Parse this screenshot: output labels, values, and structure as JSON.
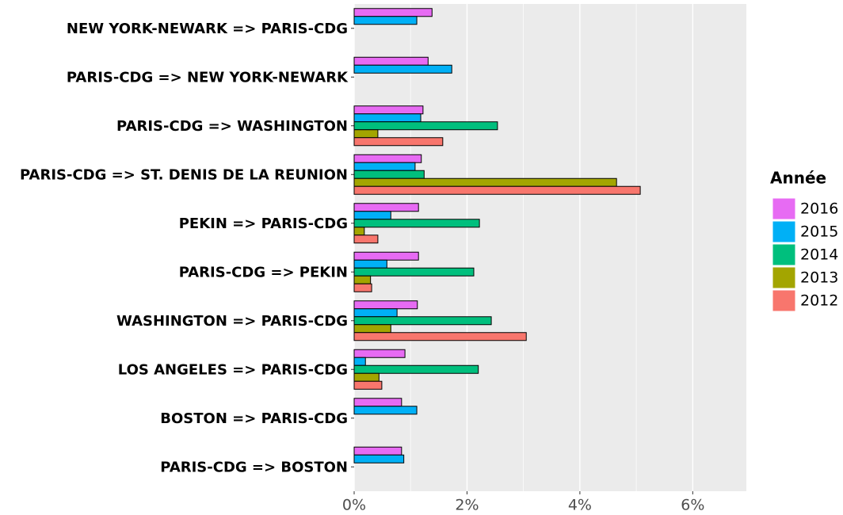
{
  "chart_data": {
    "type": "hbar",
    "categories": [
      "NEW YORK-NEWARK => PARIS-CDG",
      "PARIS-CDG => NEW YORK-NEWARK",
      "PARIS-CDG => WASHINGTON",
      "PARIS-CDG => ST. DENIS DE LA REUNION",
      "PEKIN => PARIS-CDG",
      "PARIS-CDG => PEKIN",
      "WASHINGTON => PARIS-CDG",
      "LOS ANGELES => PARIS-CDG",
      "BOSTON => PARIS-CDG",
      "PARIS-CDG => BOSTON"
    ],
    "series": [
      {
        "name": "2016",
        "color": "#E76BF3",
        "values": [
          1.38,
          1.31,
          1.22,
          1.19,
          1.14,
          1.14,
          1.12,
          0.9,
          0.84,
          0.84
        ]
      },
      {
        "name": "2015",
        "color": "#00B0F6",
        "values": [
          1.11,
          1.73,
          1.18,
          1.08,
          0.65,
          0.58,
          0.76,
          0.2,
          1.11,
          0.88
        ]
      },
      {
        "name": "2014",
        "color": "#00BF7D",
        "values": [
          null,
          null,
          2.54,
          1.24,
          2.22,
          2.12,
          2.43,
          2.2,
          null,
          null
        ]
      },
      {
        "name": "2013",
        "color": "#A3A500",
        "values": [
          null,
          null,
          0.42,
          4.65,
          0.18,
          0.29,
          0.65,
          0.44,
          null,
          null
        ]
      },
      {
        "name": "2012",
        "color": "#F8766D",
        "values": [
          null,
          null,
          1.57,
          5.07,
          0.42,
          0.31,
          3.05,
          0.49,
          null,
          null
        ]
      }
    ],
    "legend_title": "Année",
    "legend_position": "right",
    "xlim": [
      0,
      6.95
    ],
    "xticks": [
      {
        "value": 0,
        "label": "0%"
      },
      {
        "value": 2,
        "label": "2%"
      },
      {
        "value": 4,
        "label": "4%"
      },
      {
        "value": 6,
        "label": "6%"
      }
    ],
    "minor_xticks": [
      1,
      3,
      5
    ],
    "grid": true
  }
}
